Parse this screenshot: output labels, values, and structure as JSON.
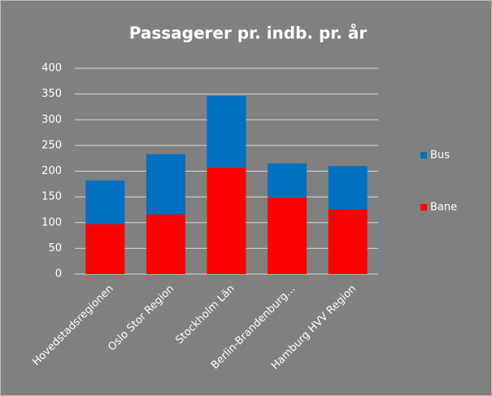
{
  "chart_data": {
    "type": "stacked_bar",
    "title": "Passagerer pr. indb. pr. år",
    "categories": [
      "Hovedstadsregionen",
      "Oslo Stor Region",
      "Stockholm Län",
      "Berlin-Brandenburg…",
      "Hamburg HVV Region"
    ],
    "series": [
      {
        "name": "Bane",
        "color": "#ff0000",
        "values": [
          97,
          116,
          207,
          149,
          126
        ]
      },
      {
        "name": "Bus",
        "color": "#0070c0",
        "values": [
          85,
          117,
          139,
          66,
          84
        ]
      }
    ],
    "ylim": [
      0,
      400
    ],
    "yticks": [
      0,
      50,
      100,
      150,
      200,
      250,
      300,
      350,
      400
    ],
    "grid": true,
    "legend": "right"
  }
}
